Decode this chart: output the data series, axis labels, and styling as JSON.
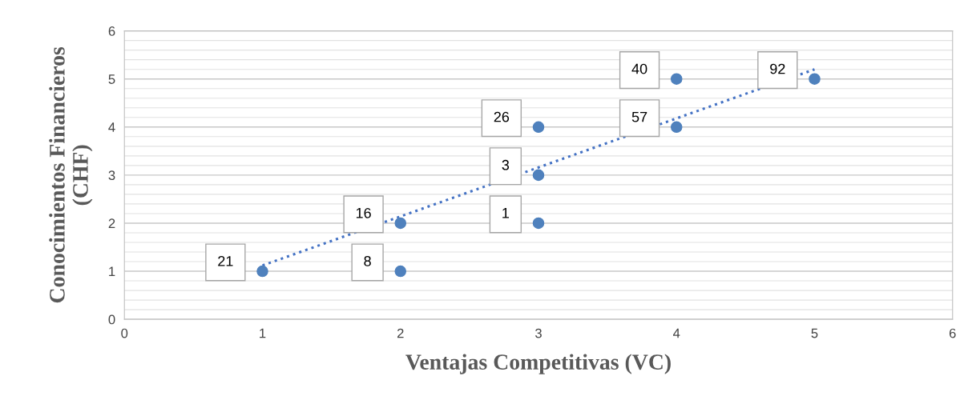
{
  "chart_data": {
    "type": "scatter",
    "xlabel": "Ventajas Competitivas (VC)",
    "ylabel": "Conocimientos Financieros\n(CHF)",
    "xlim": [
      0,
      6
    ],
    "ylim": [
      0,
      6
    ],
    "xticks": [
      0,
      1,
      2,
      3,
      4,
      5,
      6
    ],
    "yticks": [
      0,
      1,
      2,
      3,
      4,
      5,
      6
    ],
    "grid": "y",
    "marker": "circle",
    "series": [
      {
        "type": "scatter",
        "color": "#4f81bd",
        "x": [
          1,
          2,
          2,
          3,
          3,
          3,
          4,
          4,
          5
        ],
        "values": [
          1,
          2,
          1,
          4,
          3,
          2,
          5,
          4,
          5
        ]
      },
      {
        "type": "line",
        "color": "#4472c4",
        "line_style": "dotted",
        "marker": "none",
        "x": [
          1,
          5
        ],
        "values": [
          1.12,
          5.2
        ]
      }
    ],
    "annotations": [
      {
        "text": "21",
        "x": 1,
        "y": 1
      },
      {
        "text": "16",
        "x": 2,
        "y": 2
      },
      {
        "text": "8",
        "x": 2,
        "y": 1
      },
      {
        "text": "26",
        "x": 3,
        "y": 4
      },
      {
        "text": "3",
        "x": 3,
        "y": 3
      },
      {
        "text": "1",
        "x": 3,
        "y": 2
      },
      {
        "text": "40",
        "x": 4,
        "y": 5
      },
      {
        "text": "57",
        "x": 4,
        "y": 4
      },
      {
        "text": "92",
        "x": 5,
        "y": 5
      }
    ]
  }
}
